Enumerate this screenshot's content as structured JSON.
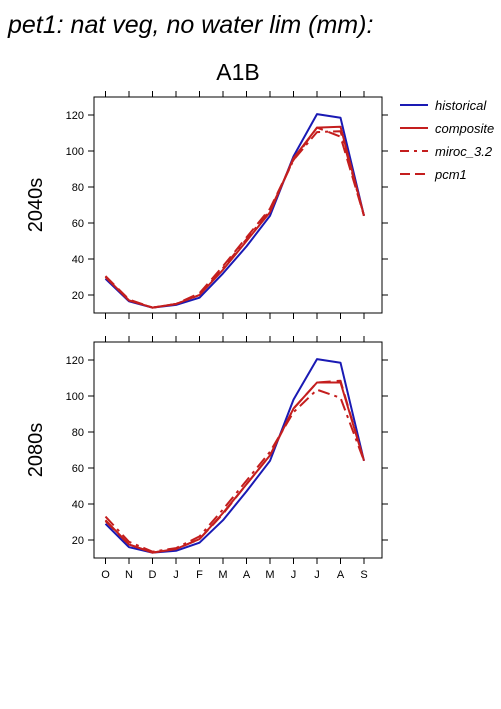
{
  "chart_data": {
    "type": "line",
    "title": "pet1: nat veg, no water lim (mm):",
    "subtitle": "A1B",
    "categories": [
      "O",
      "N",
      "D",
      "J",
      "F",
      "M",
      "A",
      "M",
      "J",
      "J",
      "A",
      "S"
    ],
    "ylim": [
      10,
      130
    ],
    "yticks": [
      20,
      40,
      60,
      80,
      100,
      120
    ],
    "grid": false,
    "legend_position": "top-right",
    "legend": [
      {
        "name": "historical",
        "color": "#1a1ab4",
        "style": "solid"
      },
      {
        "name": "composite",
        "color": "#c41e1e",
        "style": "solid"
      },
      {
        "name": "miroc_3.2",
        "color": "#c41e1e",
        "style": "dashdot"
      },
      {
        "name": "pcm1",
        "color": "#c41e1e",
        "style": "dashed"
      }
    ],
    "panels": [
      {
        "label": "2040s",
        "series": [
          {
            "name": "historical",
            "values": [
              29,
              16.5,
              13,
              14.5,
              18.5,
              32,
              47,
              64,
              97,
              120.5,
              118.5,
              64
            ]
          },
          {
            "name": "composite",
            "values": [
              30,
              17,
              13,
              15,
              20,
              34,
              50,
              66,
              96,
              113,
              113.5,
              64
            ]
          },
          {
            "name": "miroc_3.2",
            "values": [
              30,
              17,
              13,
              15,
              20,
              35,
              51,
              67,
              95,
              110.5,
              111,
              64
            ]
          },
          {
            "name": "pcm1",
            "values": [
              30.5,
              17.5,
              13,
              15,
              21,
              36,
              52,
              68,
              95,
              113,
              108,
              64
            ]
          }
        ]
      },
      {
        "label": "2080s",
        "series": [
          {
            "name": "historical",
            "values": [
              29,
              16,
              13,
              14,
              18.5,
              31,
              47,
              64,
              98,
              120.5,
              118.5,
              64
            ]
          },
          {
            "name": "composite",
            "values": [
              31,
              17.5,
              13,
              15,
              20.5,
              35,
              51,
              67,
              93,
              107.5,
              107.5,
              64
            ]
          },
          {
            "name": "miroc_3.2",
            "values": [
              33,
              19,
              13.5,
              15.5,
              22,
              37,
              53,
              69,
              91,
              103.5,
              99,
              64
            ]
          },
          {
            "name": "pcm1",
            "values": [
              30.5,
              17.5,
              13,
              15,
              20.5,
              34.5,
              51,
              67,
              93,
              107.5,
              108.5,
              64
            ]
          }
        ]
      }
    ]
  }
}
